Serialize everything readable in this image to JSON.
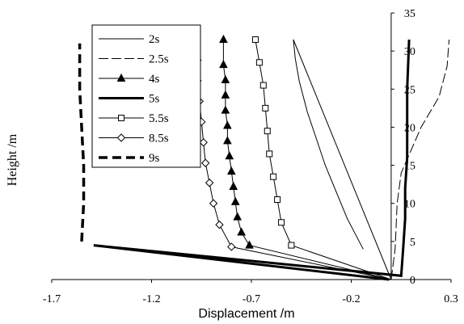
{
  "chart_data": {
    "type": "line",
    "xlabel": "Displacement /m",
    "ylabel": "Height /m",
    "xlim": [
      -1.7,
      0.3
    ],
    "ylim": [
      0,
      35
    ],
    "x_ticks": [
      "-1.7",
      "-1.2",
      "-0.7",
      "-0.2",
      "0.3"
    ],
    "y_ticks": [
      "0",
      "5",
      "10",
      "15",
      "20",
      "25",
      "30",
      "35"
    ],
    "legend_position": "top-left",
    "series": [
      {
        "name": "2s",
        "style": "thin-solid",
        "marker": "none",
        "points": [
          [
            0.0,
            0
          ],
          [
            -0.49,
            31.5
          ],
          [
            -0.48,
            29
          ],
          [
            -0.46,
            26
          ],
          [
            -0.42,
            22
          ],
          [
            -0.33,
            15
          ],
          [
            -0.22,
            8
          ],
          [
            -0.14,
            4
          ]
        ]
      },
      {
        "name": "2.5s",
        "style": "dashed",
        "marker": "none",
        "points": [
          [
            0.0,
            0
          ],
          [
            0.02,
            4
          ],
          [
            0.03,
            10
          ],
          [
            0.05,
            14
          ],
          [
            0.15,
            20
          ],
          [
            0.24,
            24
          ],
          [
            0.26,
            26
          ],
          [
            0.28,
            28
          ],
          [
            0.29,
            31.5
          ]
        ]
      },
      {
        "name": "4s",
        "style": "solid",
        "marker": "triangle",
        "points": [
          [
            0.0,
            0
          ],
          [
            -0.71,
            4.5
          ],
          [
            -0.75,
            6.2
          ],
          [
            -0.77,
            8.2
          ],
          [
            -0.78,
            10.2
          ],
          [
            -0.79,
            12.2
          ],
          [
            -0.8,
            14.2
          ],
          [
            -0.81,
            16.2
          ],
          [
            -0.82,
            18.2
          ],
          [
            -0.82,
            20.2
          ],
          [
            -0.83,
            22.2
          ],
          [
            -0.83,
            24.2
          ],
          [
            -0.83,
            26.2
          ],
          [
            -0.84,
            28.2
          ],
          [
            -0.84,
            31.5
          ]
        ]
      },
      {
        "name": "5s",
        "style": "thick-solid",
        "marker": "none",
        "points": [
          [
            -0.01,
            0
          ],
          [
            -1.49,
            4.5
          ],
          [
            0.05,
            0.5
          ],
          [
            0.06,
            4
          ],
          [
            0.07,
            8
          ],
          [
            0.07,
            12
          ],
          [
            0.08,
            16
          ],
          [
            0.08,
            20
          ],
          [
            0.08,
            25
          ],
          [
            0.09,
            31.5
          ]
        ]
      },
      {
        "name": "5.5s",
        "style": "solid",
        "marker": "square",
        "points": [
          [
            0.0,
            0
          ],
          [
            -0.5,
            4.5
          ],
          [
            -0.55,
            7.5
          ],
          [
            -0.57,
            10.5
          ],
          [
            -0.59,
            13.5
          ],
          [
            -0.61,
            16.5
          ],
          [
            -0.62,
            19.5
          ],
          [
            -0.63,
            22.5
          ],
          [
            -0.64,
            25.5
          ],
          [
            -0.66,
            28.5
          ],
          [
            -0.68,
            31.5
          ]
        ]
      },
      {
        "name": "8.5s",
        "style": "solid",
        "marker": "diamond",
        "points": [
          [
            0.0,
            0
          ],
          [
            -0.8,
            4.3
          ],
          [
            -0.86,
            7.2
          ],
          [
            -0.89,
            10.0
          ],
          [
            -0.91,
            12.7
          ],
          [
            -0.93,
            15.3
          ],
          [
            -0.94,
            18.0
          ],
          [
            -0.95,
            20.7
          ],
          [
            -0.96,
            23.4
          ],
          [
            -0.97,
            26.1
          ],
          [
            -0.97,
            28.8
          ],
          [
            -0.98,
            31.5
          ]
        ]
      },
      {
        "name": "9s",
        "style": "thick-dashed",
        "marker": "none",
        "points": [
          [
            -1.55,
            5
          ],
          [
            -1.54,
            10
          ],
          [
            -1.54,
            15
          ],
          [
            -1.55,
            20
          ],
          [
            -1.56,
            25
          ],
          [
            -1.56,
            31
          ]
        ]
      }
    ]
  }
}
